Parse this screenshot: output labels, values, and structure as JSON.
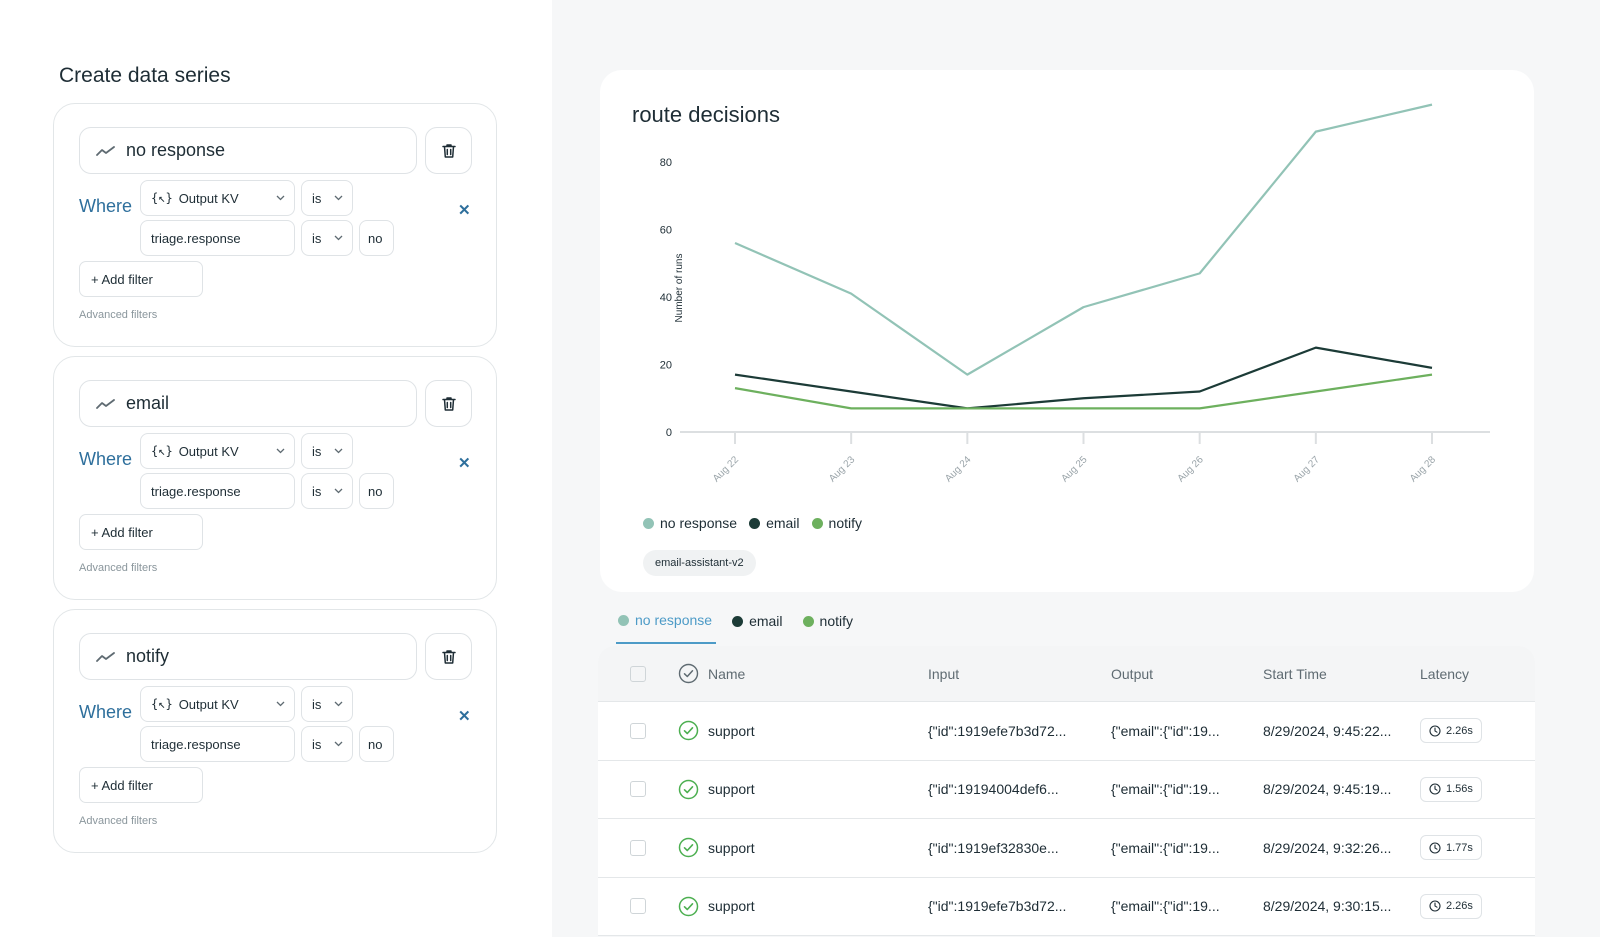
{
  "left_panel": {
    "title": "Create data series",
    "series": [
      {
        "name": "no response",
        "where_label": "Where",
        "field_select": "Output KV",
        "field_op": "is",
        "key": "triage.response",
        "key_op": "is",
        "value": "no",
        "add_filter": "+ Add filter",
        "advanced": "Advanced filters"
      },
      {
        "name": "email",
        "where_label": "Where",
        "field_select": "Output KV",
        "field_op": "is",
        "key": "triage.response",
        "key_op": "is",
        "value": "no",
        "add_filter": "+ Add filter",
        "advanced": "Advanced filters"
      },
      {
        "name": "notify",
        "where_label": "Where",
        "field_select": "Output KV",
        "field_op": "is",
        "key": "triage.response",
        "key_op": "is",
        "value": "no",
        "add_filter": "+ Add filter",
        "advanced": "Advanced filters"
      }
    ]
  },
  "chart_data": {
    "type": "line",
    "title": "route decisions",
    "ylabel": "Number of runs",
    "xlabel": "",
    "categories": [
      "Aug 22",
      "Aug 23",
      "Aug 24",
      "Aug 25",
      "Aug 26",
      "Aug 27",
      "Aug 28"
    ],
    "y_ticks": [
      "0",
      "20",
      "40",
      "60",
      "80"
    ],
    "ylim": [
      0,
      80
    ],
    "grid": false,
    "legend_position": "bottom-left",
    "series": [
      {
        "name": "no response",
        "color": "#92c3b6",
        "values": [
          56,
          41,
          17,
          37,
          47,
          89,
          97
        ]
      },
      {
        "name": "email",
        "color": "#1c3b37",
        "values": [
          17,
          12,
          7,
          10,
          12,
          25,
          19
        ]
      },
      {
        "name": "notify",
        "color": "#6db05e",
        "values": [
          13,
          7,
          7,
          7,
          7,
          12,
          17
        ]
      }
    ]
  },
  "chart_card": {
    "legend": [
      {
        "label": "no response",
        "color": "#92c3b6"
      },
      {
        "label": "email",
        "color": "#1c3b37"
      },
      {
        "label": "notify",
        "color": "#6db05e"
      }
    ],
    "chip": "email-assistant-v2"
  },
  "tabs": [
    {
      "label": "no response",
      "color": "#92c3b6",
      "active": true
    },
    {
      "label": "email",
      "color": "#1c3b37",
      "active": false
    },
    {
      "label": "notify",
      "color": "#6db05e",
      "active": false
    }
  ],
  "table": {
    "columns": {
      "name": "Name",
      "input": "Input",
      "output": "Output",
      "start": "Start Time",
      "latency": "Latency"
    },
    "rows": [
      {
        "name": "support",
        "input": "{\"id\":1919efe7b3d72...",
        "output": "{\"email\":{\"id\":19...",
        "start": "8/29/2024, 9:45:22...",
        "latency": "2.26s"
      },
      {
        "name": "support",
        "input": "{\"id\":19194004def6...",
        "output": "{\"email\":{\"id\":19...",
        "start": "8/29/2024, 9:45:19...",
        "latency": "1.56s"
      },
      {
        "name": "support",
        "input": "{\"id\":1919ef32830e...",
        "output": "{\"email\":{\"id\":19...",
        "start": "8/29/2024, 9:32:26...",
        "latency": "1.77s"
      },
      {
        "name": "support",
        "input": "{\"id\":1919efe7b3d72...",
        "output": "{\"email\":{\"id\":19...",
        "start": "8/29/2024, 9:30:15...",
        "latency": "2.26s"
      }
    ]
  }
}
